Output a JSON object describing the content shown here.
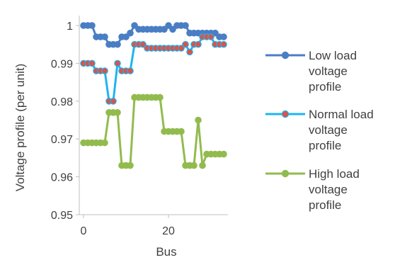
{
  "chart_data": {
    "type": "line",
    "title": "",
    "xlabel": "Bus",
    "ylabel": "Voltage profile (per unit)",
    "xlim": [
      -1,
      34
    ],
    "ylim": [
      0.95,
      1.0
    ],
    "x_ticks": [
      0,
      20
    ],
    "x_tick_labels": [
      "0",
      "20"
    ],
    "y_ticks": [
      0.95,
      0.96,
      0.97,
      0.98,
      0.99,
      1.0
    ],
    "y_tick_labels": [
      "0.95",
      "0.96",
      "0.97",
      "0.98",
      "0.99",
      "1"
    ],
    "grid": false,
    "legend": "right",
    "x": [
      0,
      1,
      2,
      3,
      4,
      5,
      6,
      7,
      8,
      9,
      10,
      11,
      12,
      13,
      14,
      15,
      16,
      17,
      18,
      19,
      20,
      21,
      22,
      23,
      24,
      25,
      26,
      27,
      28,
      29,
      30,
      31,
      32,
      33
    ],
    "series": [
      {
        "name": "Low load voltage profile",
        "legend_lines": [
          "Low load",
          "voltage",
          "profile"
        ],
        "color": "#4a7ec4",
        "marker_fill": "#4a7ec4",
        "values": [
          1.0,
          1.0,
          1.0,
          0.997,
          0.997,
          0.997,
          0.995,
          0.995,
          0.995,
          0.997,
          0.997,
          0.998,
          1.0,
          0.999,
          0.999,
          0.999,
          0.999,
          0.999,
          0.999,
          0.999,
          1.0,
          0.999,
          1.0,
          1.0,
          1.0,
          0.998,
          0.998,
          0.998,
          0.998,
          0.998,
          0.998,
          0.998,
          0.997,
          0.997
        ]
      },
      {
        "name": "Normal load voltage profile",
        "legend_lines": [
          "Normal load",
          "voltage",
          "profile"
        ],
        "color": "#1eb4f0",
        "marker_fill": "#d9534a",
        "values": [
          0.99,
          0.99,
          0.99,
          0.988,
          0.988,
          0.988,
          0.98,
          0.98,
          0.99,
          0.988,
          0.988,
          0.988,
          0.995,
          0.995,
          0.995,
          0.994,
          0.994,
          0.994,
          0.994,
          0.994,
          0.994,
          0.994,
          0.994,
          0.994,
          0.995,
          0.993,
          0.995,
          0.995,
          0.997,
          0.997,
          0.997,
          0.995,
          0.995,
          0.995
        ]
      },
      {
        "name": "High load voltage profile",
        "legend_lines": [
          "High load",
          "voltage",
          "profile"
        ],
        "color": "#92bb4e",
        "marker_fill": "#92bb4e",
        "values": [
          0.969,
          0.969,
          0.969,
          0.969,
          0.969,
          0.969,
          0.977,
          0.977,
          0.977,
          0.963,
          0.963,
          0.963,
          0.981,
          0.981,
          0.981,
          0.981,
          0.981,
          0.981,
          0.981,
          0.972,
          0.972,
          0.972,
          0.972,
          0.972,
          0.963,
          0.963,
          0.963,
          0.975,
          0.963,
          0.966,
          0.966,
          0.966,
          0.966,
          0.966
        ]
      }
    ]
  },
  "colors": {
    "axis": "#bfbfbf",
    "text": "#404040"
  }
}
